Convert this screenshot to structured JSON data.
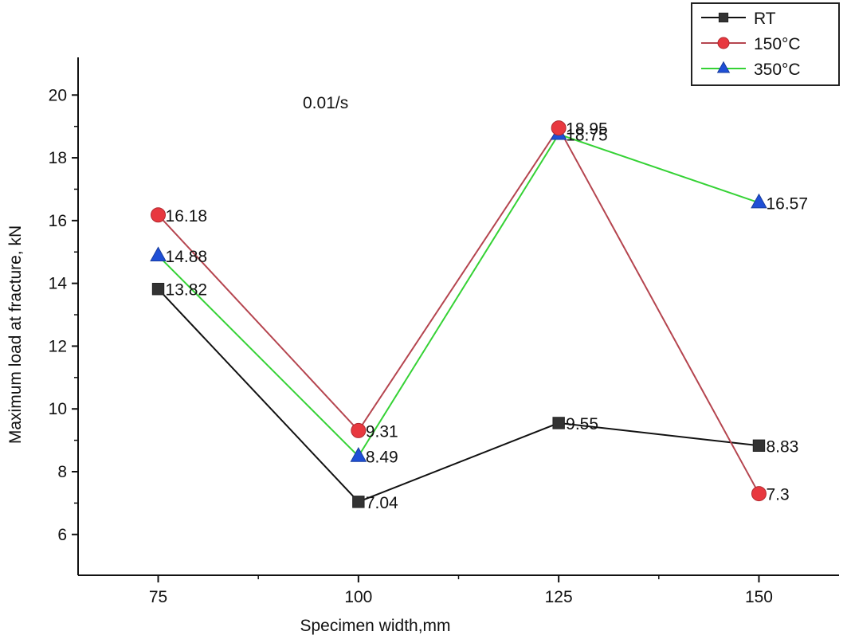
{
  "chart_data": {
    "type": "line",
    "title": "",
    "xlabel": "Specimen width,mm",
    "ylabel": "Maximum load at fracture, kN",
    "annotation": "0.01/s",
    "x": [
      75,
      100,
      125,
      150
    ],
    "x_tick_labels": [
      "75",
      "100",
      "125",
      "150"
    ],
    "xlim": [
      65,
      160
    ],
    "ylim": [
      4.7,
      21.2
    ],
    "y_ticks": [
      6,
      8,
      10,
      12,
      14,
      16,
      18,
      20
    ],
    "y_tick_labels": [
      "6",
      "8",
      "10",
      "12",
      "14",
      "16",
      "18",
      "20"
    ],
    "grid": false,
    "legend_position": "top-right",
    "series": [
      {
        "name": "RT",
        "marker": "square",
        "line_color": "#111111",
        "marker_color": "#333333",
        "values": [
          13.82,
          7.04,
          9.55,
          8.83
        ],
        "labels": [
          "13.82",
          "7.04",
          "9.55",
          "8.83"
        ]
      },
      {
        "name": "150°C",
        "marker": "circle",
        "line_color": "#b5454f",
        "marker_color": "#e8383f",
        "values": [
          16.18,
          9.31,
          18.95,
          7.3
        ],
        "labels": [
          "16.18",
          "9.31",
          "18.95",
          "7.3"
        ]
      },
      {
        "name": "350°C",
        "marker": "triangle",
        "line_color": "#35d235",
        "marker_color": "#1f4fd6",
        "values": [
          14.88,
          8.49,
          18.75,
          16.57
        ],
        "labels": [
          "14.88",
          "8.49",
          "18.75",
          "16.57"
        ]
      }
    ]
  }
}
